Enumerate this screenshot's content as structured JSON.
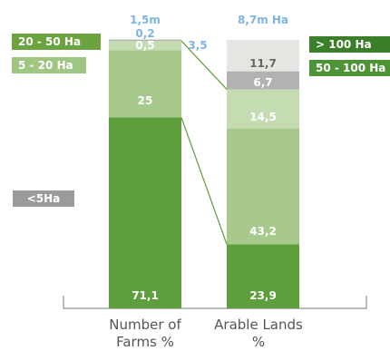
{
  "colors": {
    "lt5": "#5f9e3d",
    "c5_20": "#a7c98b",
    "c20_50": "#c5dcb3",
    "c50_100": "#b2b2b2",
    "gt100": "#e3e6e1",
    "value_text": "#ffffff",
    "top_label": "#7fb4e6",
    "axis": "#8f8f8f",
    "connector": "#6a9f42",
    "legend_20_50": "#6aa33f",
    "legend_5_20": "#9fc783",
    "legend_lt5": "#9b9b9b",
    "legend_gt100": "#3b7f2a",
    "legend_50_100": "#4e9335"
  },
  "legend": {
    "c20_50": "20 - 50 Ha",
    "c5_20": "5 - 20 Ha",
    "lt5": "<5Ha",
    "gt100": "> 100 Ha",
    "c50_100": "50 - 100 Ha"
  },
  "chart_data": {
    "type": "bar",
    "stacked": true,
    "categories": [
      "Number of Farms %",
      "Arable Lands %"
    ],
    "totals": [
      "1,5m",
      "8,7m Ha"
    ],
    "series": [
      {
        "name": "<5Ha",
        "values": [
          71.1,
          23.9
        ],
        "labels": [
          "71,1",
          "23,9"
        ]
      },
      {
        "name": "5 - 20 Ha",
        "values": [
          25,
          43.2
        ],
        "labels": [
          "25",
          "43,2"
        ]
      },
      {
        "name": "20 - 50 Ha",
        "values": [
          3.5,
          14.5
        ],
        "labels": [
          "3,5",
          "14,5"
        ]
      },
      {
        "name": "50 - 100 Ha",
        "values": [
          0.5,
          6.7
        ],
        "labels": [
          "0,5",
          "6,7"
        ]
      },
      {
        "name": "> 100 Ha",
        "values": [
          0.2,
          11.7
        ],
        "labels": [
          "0,2",
          "11,7"
        ]
      }
    ],
    "ylim": [
      0,
      100
    ]
  }
}
